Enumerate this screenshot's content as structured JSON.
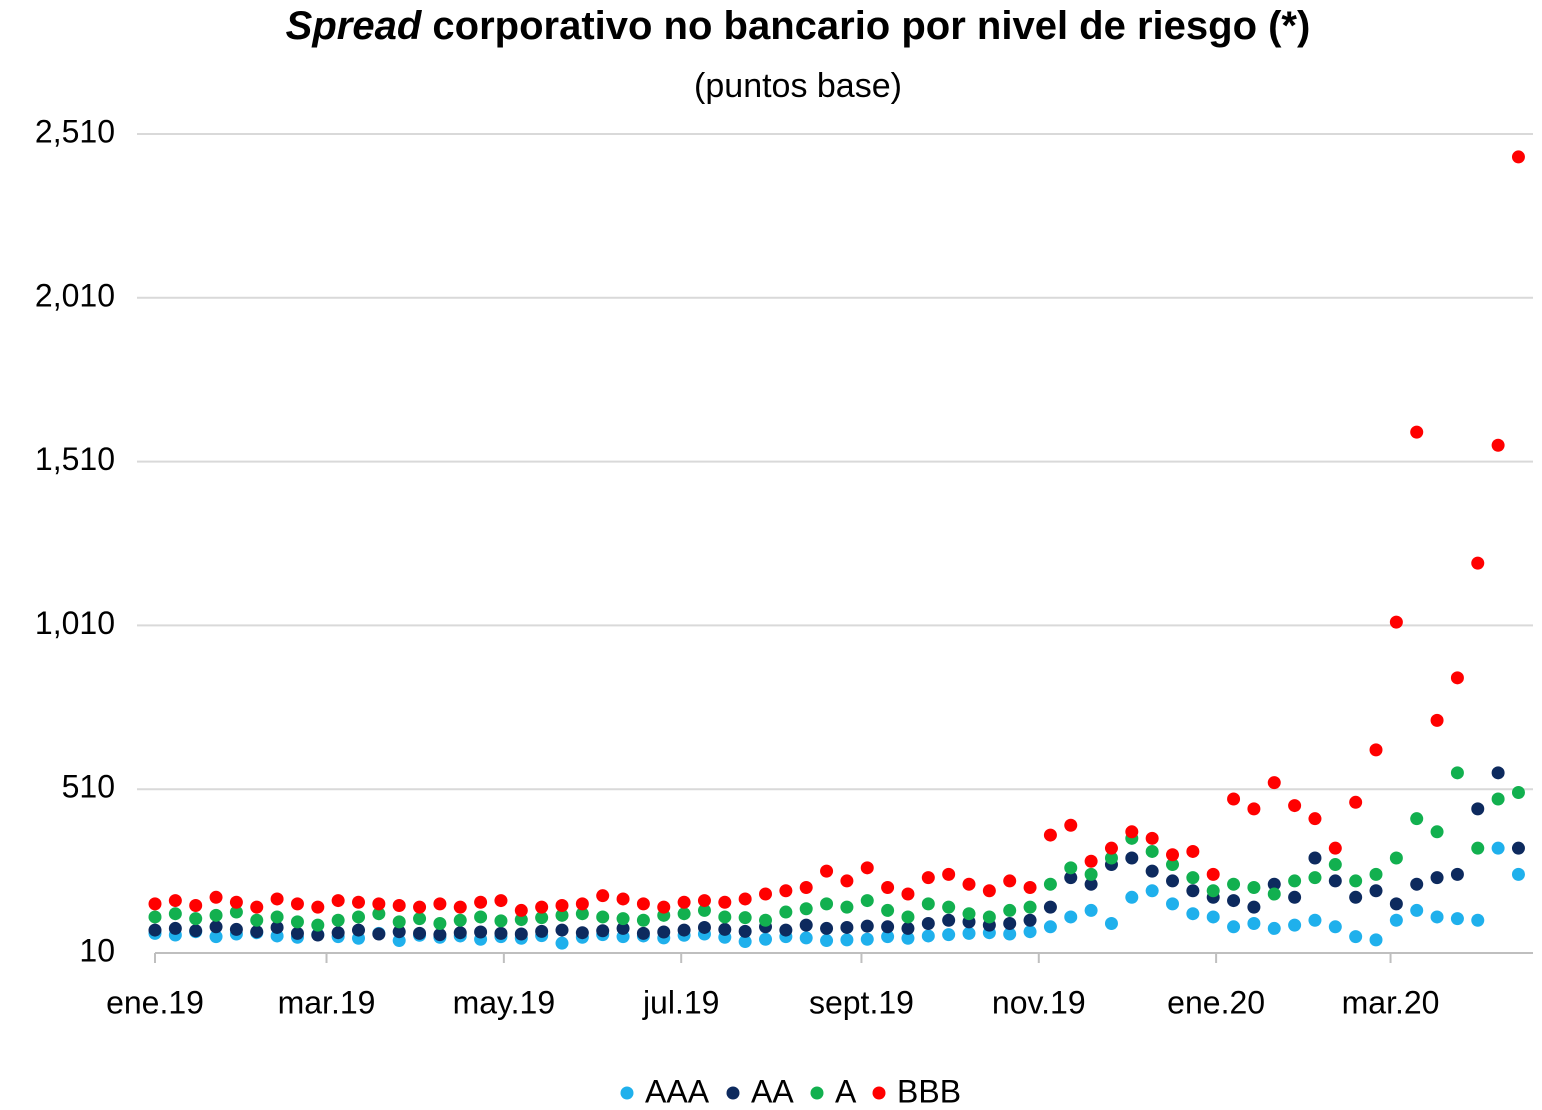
{
  "chart_data": {
    "type": "scatter",
    "title_italic": "Spread",
    "title": "corporativo no bancario por nivel de riesgo (*)",
    "subtitle": "(puntos base)",
    "x": [
      0,
      7,
      14,
      21,
      28,
      35,
      42,
      49,
      56,
      63,
      70,
      77,
      84,
      91,
      98,
      105,
      112,
      119,
      126,
      133,
      140,
      147,
      154,
      161,
      168,
      175,
      182,
      189,
      196,
      203,
      210,
      217,
      224,
      231,
      238,
      245,
      252,
      259,
      266,
      273,
      280,
      287,
      294,
      301,
      308,
      315,
      322,
      329,
      336,
      343,
      350,
      357,
      364,
      371,
      378,
      385,
      392,
      399,
      406,
      413,
      420,
      427,
      434,
      441,
      448,
      455,
      462,
      469
    ],
    "xlim": [
      0,
      474
    ],
    "xticks": [
      {
        "value": 0,
        "label": "ene.19"
      },
      {
        "value": 59,
        "label": "mar.19"
      },
      {
        "value": 120,
        "label": "may.19"
      },
      {
        "value": 181,
        "label": "jul.19"
      },
      {
        "value": 243,
        "label": "sept.19"
      },
      {
        "value": 304,
        "label": "nov.19"
      },
      {
        "value": 365,
        "label": "ene.20"
      },
      {
        "value": 425,
        "label": "mar.20"
      }
    ],
    "ylim": [
      10,
      2510
    ],
    "yticks": [
      10,
      510,
      {
        "value": 1010,
        "label": "1,010"
      },
      {
        "value": 1510,
        "label": "1,510"
      },
      {
        "value": 2010,
        "label": "2,010"
      },
      {
        "value": 2510,
        "label": "2,510"
      }
    ],
    "grid": true,
    "legend": "bottom",
    "series": [
      {
        "name": "AAA",
        "color": "#1fb0ec",
        "values": [
          70,
          65,
          75,
          60,
          68,
          72,
          62,
          58,
          66,
          60,
          55,
          70,
          48,
          64,
          58,
          62,
          52,
          60,
          55,
          63,
          40,
          58,
          66,
          60,
          62,
          56,
          64,
          68,
          58,
          45,
          52,
          60,
          56,
          48,
          50,
          52,
          60,
          55,
          62,
          66,
          70,
          72,
          68,
          75,
          90,
          120,
          140,
          100,
          180,
          200,
          160,
          130,
          120,
          90,
          100,
          85,
          95,
          110,
          90,
          60,
          50,
          110,
          140,
          120,
          115,
          110,
          330,
          250
        ]
      },
      {
        "name": "AA",
        "color": "#0d2a5e",
        "values": [
          80,
          85,
          78,
          90,
          82,
          75,
          88,
          70,
          65,
          72,
          80,
          68,
          75,
          70,
          66,
          72,
          74,
          70,
          68,
          76,
          80,
          72,
          78,
          85,
          70,
          74,
          80,
          88,
          82,
          76,
          90,
          80,
          95,
          85,
          88,
          92,
          90,
          85,
          100,
          110,
          105,
          95,
          100,
          110,
          150,
          240,
          220,
          280,
          300,
          260,
          230,
          200,
          180,
          170,
          150,
          220,
          180,
          300,
          230,
          180,
          200,
          160,
          220,
          240,
          250,
          450,
          560,
          330
        ]
      },
      {
        "name": "A",
        "color": "#12b04f",
        "values": [
          120,
          130,
          115,
          125,
          135,
          110,
          120,
          105,
          95,
          110,
          120,
          130,
          105,
          115,
          100,
          110,
          120,
          108,
          112,
          118,
          125,
          130,
          120,
          115,
          110,
          125,
          130,
          140,
          120,
          118,
          110,
          135,
          145,
          160,
          150,
          170,
          140,
          120,
          160,
          150,
          130,
          120,
          140,
          150,
          220,
          270,
          250,
          300,
          360,
          320,
          280,
          240,
          200,
          220,
          210,
          190,
          230,
          240,
          280,
          230,
          250,
          300,
          420,
          380,
          560,
          330,
          480,
          500
        ]
      },
      {
        "name": "BBB",
        "color": "#ff0000",
        "values": [
          160,
          170,
          155,
          180,
          165,
          150,
          175,
          160,
          150,
          170,
          165,
          160,
          155,
          150,
          160,
          150,
          165,
          170,
          140,
          150,
          155,
          160,
          185,
          175,
          160,
          150,
          165,
          170,
          165,
          175,
          190,
          200,
          210,
          260,
          230,
          270,
          210,
          190,
          240,
          250,
          220,
          200,
          230,
          210,
          370,
          400,
          290,
          330,
          380,
          360,
          310,
          320,
          250,
          480,
          450,
          530,
          460,
          420,
          330,
          470,
          630,
          1020,
          1600,
          720,
          850,
          1200,
          1560,
          2440
        ]
      }
    ]
  }
}
